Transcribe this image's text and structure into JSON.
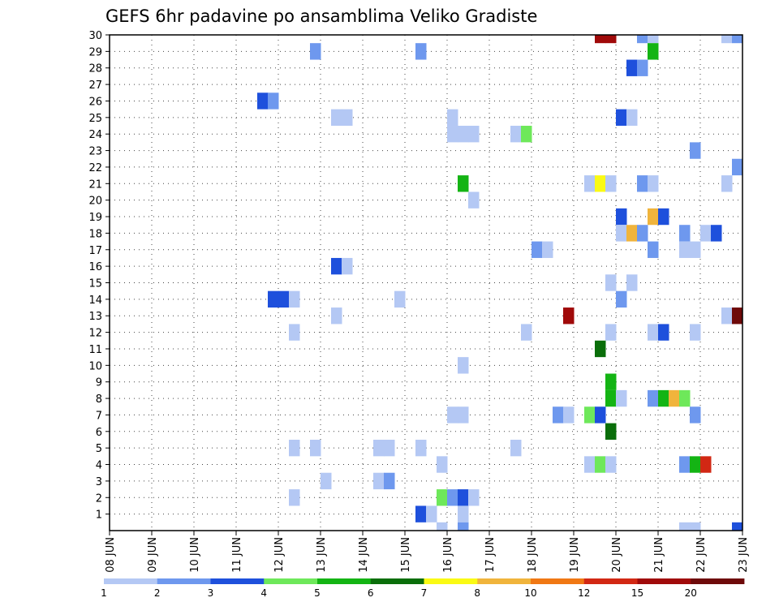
{
  "chart_data": {
    "type": "heatmap",
    "title": "GEFS 6hr padavine po ansamblima Veliko Gradiste",
    "x_tick_labels": [
      "08 JUN",
      "09 JUN",
      "10 JUN",
      "11 JUN",
      "12 JUN",
      "13 JUN",
      "14 JUN",
      "15 JUN",
      "16 JUN",
      "17 JUN",
      "18 JUN",
      "19 JUN",
      "20 JUN",
      "21 JUN",
      "22 JUN",
      "23 JUN"
    ],
    "y_tick_labels": [
      "1",
      "2",
      "3",
      "4",
      "5",
      "6",
      "7",
      "8",
      "9",
      "10",
      "11",
      "12",
      "13",
      "14",
      "15",
      "16",
      "17",
      "18",
      "19",
      "20",
      "21",
      "22",
      "23",
      "24",
      "25",
      "26",
      "27",
      "28",
      "29",
      "30"
    ],
    "x_range_days": [
      0,
      15
    ],
    "y_range": [
      0,
      30
    ],
    "grid": true,
    "colorbar": {
      "labels": [
        "1",
        "2",
        "3",
        "4",
        "5",
        "6",
        "7",
        "8",
        "10",
        "12",
        "15",
        "20"
      ],
      "colors": [
        "#b4c8f4",
        "#6e98ee",
        "#1e50dc",
        "#6ee85a",
        "#14b414",
        "#0a6e0a",
        "#fafa14",
        "#f0b43c",
        "#f07814",
        "#d22814",
        "#a00a0a",
        "#6e0a0a"
      ]
    },
    "cells": [
      {
        "t": 11.5,
        "m": 30,
        "v": 15
      },
      {
        "t": 11.75,
        "m": 30,
        "v": 15
      },
      {
        "t": 12.5,
        "m": 30,
        "v": 2
      },
      {
        "t": 12.75,
        "m": 30,
        "v": 1
      },
      {
        "t": 14.5,
        "m": 30,
        "v": 1
      },
      {
        "t": 14.75,
        "m": 30,
        "v": 2
      },
      {
        "t": 4.75,
        "m": 29,
        "v": 2
      },
      {
        "t": 7.25,
        "m": 29,
        "v": 2
      },
      {
        "t": 12.75,
        "m": 29,
        "v": 5
      },
      {
        "t": 12.25,
        "m": 28,
        "v": 3
      },
      {
        "t": 12.5,
        "m": 28,
        "v": 2
      },
      {
        "t": 3.5,
        "m": 26,
        "v": 3
      },
      {
        "t": 3.75,
        "m": 26,
        "v": 2
      },
      {
        "t": 5.25,
        "m": 25,
        "v": 1
      },
      {
        "t": 5.5,
        "m": 25,
        "v": 1
      },
      {
        "t": 8.0,
        "m": 25,
        "v": 1
      },
      {
        "t": 12.0,
        "m": 25,
        "v": 3
      },
      {
        "t": 12.25,
        "m": 25,
        "v": 1
      },
      {
        "t": 8.0,
        "m": 24,
        "v": 1
      },
      {
        "t": 8.25,
        "m": 24,
        "v": 1
      },
      {
        "t": 8.5,
        "m": 24,
        "v": 1
      },
      {
        "t": 9.5,
        "m": 24,
        "v": 1
      },
      {
        "t": 9.75,
        "m": 24,
        "v": 4
      },
      {
        "t": 13.75,
        "m": 23,
        "v": 2
      },
      {
        "t": 14.75,
        "m": 22,
        "v": 2
      },
      {
        "t": 8.25,
        "m": 21,
        "v": 5
      },
      {
        "t": 11.25,
        "m": 21,
        "v": 1
      },
      {
        "t": 11.5,
        "m": 21,
        "v": 7
      },
      {
        "t": 11.75,
        "m": 21,
        "v": 1
      },
      {
        "t": 12.5,
        "m": 21,
        "v": 2
      },
      {
        "t": 12.75,
        "m": 21,
        "v": 1
      },
      {
        "t": 14.5,
        "m": 21,
        "v": 1
      },
      {
        "t": 8.5,
        "m": 20,
        "v": 1
      },
      {
        "t": 12.0,
        "m": 19,
        "v": 3
      },
      {
        "t": 12.75,
        "m": 19,
        "v": 8
      },
      {
        "t": 13.0,
        "m": 19,
        "v": 3
      },
      {
        "t": 12.0,
        "m": 18,
        "v": 1
      },
      {
        "t": 12.25,
        "m": 18,
        "v": 8
      },
      {
        "t": 12.5,
        "m": 18,
        "v": 2
      },
      {
        "t": 13.5,
        "m": 18,
        "v": 2
      },
      {
        "t": 14.0,
        "m": 18,
        "v": 1
      },
      {
        "t": 14.25,
        "m": 18,
        "v": 3
      },
      {
        "t": 10.0,
        "m": 17,
        "v": 2
      },
      {
        "t": 10.25,
        "m": 17,
        "v": 1
      },
      {
        "t": 12.75,
        "m": 17,
        "v": 2
      },
      {
        "t": 13.5,
        "m": 17,
        "v": 1
      },
      {
        "t": 13.75,
        "m": 17,
        "v": 1
      },
      {
        "t": 5.25,
        "m": 16,
        "v": 3
      },
      {
        "t": 5.5,
        "m": 16,
        "v": 1
      },
      {
        "t": 11.75,
        "m": 15,
        "v": 1
      },
      {
        "t": 12.25,
        "m": 15,
        "v": 1
      },
      {
        "t": 3.75,
        "m": 14,
        "v": 3
      },
      {
        "t": 4.0,
        "m": 14,
        "v": 3
      },
      {
        "t": 4.25,
        "m": 14,
        "v": 1
      },
      {
        "t": 6.75,
        "m": 14,
        "v": 1
      },
      {
        "t": 12.0,
        "m": 14,
        "v": 2
      },
      {
        "t": 5.25,
        "m": 13,
        "v": 1
      },
      {
        "t": 10.75,
        "m": 13,
        "v": 15
      },
      {
        "t": 14.5,
        "m": 13,
        "v": 1
      },
      {
        "t": 14.75,
        "m": 13,
        "v": 20
      },
      {
        "t": 15.0,
        "m": 13,
        "v": 7
      },
      {
        "t": 4.25,
        "m": 12,
        "v": 1
      },
      {
        "t": 9.75,
        "m": 12,
        "v": 1
      },
      {
        "t": 11.75,
        "m": 12,
        "v": 1
      },
      {
        "t": 12.75,
        "m": 12,
        "v": 1
      },
      {
        "t": 13.0,
        "m": 12,
        "v": 3
      },
      {
        "t": 13.75,
        "m": 12,
        "v": 1
      },
      {
        "t": 11.5,
        "m": 11,
        "v": 6
      },
      {
        "t": 8.25,
        "m": 10,
        "v": 1
      },
      {
        "t": 15.0,
        "m": 10,
        "v": 3
      },
      {
        "t": 11.75,
        "m": 9,
        "v": 5
      },
      {
        "t": 15.0,
        "m": 9,
        "v": 1
      },
      {
        "t": 11.75,
        "m": 8,
        "v": 5
      },
      {
        "t": 12.0,
        "m": 8,
        "v": 1
      },
      {
        "t": 12.75,
        "m": 8,
        "v": 2
      },
      {
        "t": 13.0,
        "m": 8,
        "v": 5
      },
      {
        "t": 13.25,
        "m": 8,
        "v": 8
      },
      {
        "t": 13.5,
        "m": 8,
        "v": 4
      },
      {
        "t": 15.0,
        "m": 8,
        "v": 1
      },
      {
        "t": 8.0,
        "m": 7,
        "v": 1
      },
      {
        "t": 8.25,
        "m": 7,
        "v": 1
      },
      {
        "t": 10.5,
        "m": 7,
        "v": 2
      },
      {
        "t": 10.75,
        "m": 7,
        "v": 1
      },
      {
        "t": 11.25,
        "m": 7,
        "v": 4
      },
      {
        "t": 11.5,
        "m": 7,
        "v": 3
      },
      {
        "t": 13.75,
        "m": 7,
        "v": 2
      },
      {
        "t": 11.75,
        "m": 6,
        "v": 6
      },
      {
        "t": 4.25,
        "m": 5,
        "v": 1
      },
      {
        "t": 4.75,
        "m": 5,
        "v": 1
      },
      {
        "t": 6.25,
        "m": 5,
        "v": 1
      },
      {
        "t": 6.5,
        "m": 5,
        "v": 1
      },
      {
        "t": 7.25,
        "m": 5,
        "v": 1
      },
      {
        "t": 9.5,
        "m": 5,
        "v": 1
      },
      {
        "t": 7.75,
        "m": 4,
        "v": 1
      },
      {
        "t": 11.25,
        "m": 4,
        "v": 1
      },
      {
        "t": 11.5,
        "m": 4,
        "v": 4
      },
      {
        "t": 11.75,
        "m": 4,
        "v": 1
      },
      {
        "t": 13.5,
        "m": 4,
        "v": 2
      },
      {
        "t": 13.75,
        "m": 4,
        "v": 5
      },
      {
        "t": 14.0,
        "m": 4,
        "v": 12
      },
      {
        "t": 5.0,
        "m": 3,
        "v": 1
      },
      {
        "t": 6.25,
        "m": 3,
        "v": 1
      },
      {
        "t": 6.5,
        "m": 3,
        "v": 2
      },
      {
        "t": 15.0,
        "m": 3,
        "v": 2
      },
      {
        "t": 4.25,
        "m": 2,
        "v": 1
      },
      {
        "t": 7.75,
        "m": 2,
        "v": 4
      },
      {
        "t": 8.0,
        "m": 2,
        "v": 2
      },
      {
        "t": 8.25,
        "m": 2,
        "v": 3
      },
      {
        "t": 8.5,
        "m": 2,
        "v": 1
      },
      {
        "t": 7.25,
        "m": 1,
        "v": 3
      },
      {
        "t": 7.5,
        "m": 1,
        "v": 1
      },
      {
        "t": 8.25,
        "m": 1,
        "v": 1
      },
      {
        "t": 7.75,
        "m": 0,
        "v": 1
      },
      {
        "t": 8.25,
        "m": 0,
        "v": 2
      },
      {
        "t": 13.5,
        "m": 0,
        "v": 1
      },
      {
        "t": 13.75,
        "m": 0,
        "v": 1
      },
      {
        "t": 14.75,
        "m": 0,
        "v": 3
      }
    ]
  }
}
